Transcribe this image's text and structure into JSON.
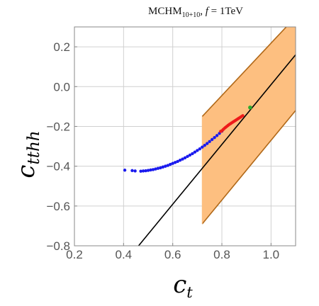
{
  "chart_data": {
    "type": "scatter",
    "title": {
      "pre": "MCHM",
      "sub": "10+10",
      "post": ",  ",
      "f_var": "f",
      "f_rest": " = 1TeV"
    },
    "xlabel": {
      "main": "c",
      "sub": "t"
    },
    "ylabel": {
      "main": "c",
      "sub": "tthh"
    },
    "xlim": [
      0.2,
      1.1
    ],
    "ylim": [
      -0.8,
      0.3
    ],
    "grid": true,
    "xticks": [
      {
        "value": 0.2,
        "label": "0.2"
      },
      {
        "value": 0.4,
        "label": "0.4"
      },
      {
        "value": 0.6,
        "label": "0.6"
      },
      {
        "value": 0.8,
        "label": "0.8"
      },
      {
        "value": 1.0,
        "label": "1.0"
      }
    ],
    "yticks": [
      {
        "value": 0.2,
        "label": "0.2"
      },
      {
        "value": 0.0,
        "label": "0.0"
      },
      {
        "value": -0.2,
        "label": "−0.2"
      },
      {
        "value": -0.4,
        "label": "−0.4"
      },
      {
        "value": -0.6,
        "label": "−0.6"
      },
      {
        "value": -0.8,
        "label": "−0.8"
      }
    ],
    "band": {
      "color": "#fdbf80",
      "edge_color": "#b06818",
      "x_start": 0.72,
      "upper": [
        [
          0.72,
          -0.15
        ],
        [
          1.1,
          0.35
        ]
      ],
      "lower": [
        [
          0.72,
          -0.69
        ],
        [
          1.1,
          -0.12
        ]
      ]
    },
    "line": {
      "color": "#000000",
      "points": [
        [
          0.461,
          -0.8
        ],
        [
          1.1,
          0.16
        ]
      ]
    },
    "series": [
      {
        "color": "#1a1aee",
        "points": [
          [
            0.405,
            -0.42
          ],
          [
            0.435,
            -0.422
          ],
          [
            0.447,
            -0.424
          ],
          [
            0.47,
            -0.425
          ],
          [
            0.48,
            -0.424
          ],
          [
            0.49,
            -0.423
          ],
          [
            0.5,
            -0.421
          ],
          [
            0.51,
            -0.419
          ],
          [
            0.52,
            -0.417
          ],
          [
            0.53,
            -0.414
          ],
          [
            0.54,
            -0.411
          ],
          [
            0.55,
            -0.408
          ],
          [
            0.56,
            -0.404
          ],
          [
            0.57,
            -0.4
          ],
          [
            0.58,
            -0.396
          ],
          [
            0.59,
            -0.391
          ],
          [
            0.6,
            -0.386
          ],
          [
            0.61,
            -0.381
          ],
          [
            0.62,
            -0.376
          ],
          [
            0.63,
            -0.37
          ],
          [
            0.64,
            -0.364
          ],
          [
            0.65,
            -0.358
          ],
          [
            0.66,
            -0.351
          ],
          [
            0.67,
            -0.344
          ],
          [
            0.68,
            -0.337
          ],
          [
            0.69,
            -0.329
          ],
          [
            0.7,
            -0.321
          ],
          [
            0.71,
            -0.313
          ],
          [
            0.72,
            -0.304
          ],
          [
            0.73,
            -0.295
          ],
          [
            0.74,
            -0.286
          ],
          [
            0.75,
            -0.276
          ],
          [
            0.76,
            -0.266
          ],
          [
            0.77,
            -0.256
          ],
          [
            0.78,
            -0.246
          ],
          [
            0.79,
            -0.235
          ],
          [
            0.8,
            -0.224
          ]
        ]
      },
      {
        "color": "#ee1a1a",
        "points": [
          [
            0.795,
            -0.225
          ],
          [
            0.8,
            -0.222
          ],
          [
            0.805,
            -0.216
          ],
          [
            0.81,
            -0.21
          ],
          [
            0.815,
            -0.205
          ],
          [
            0.82,
            -0.2
          ],
          [
            0.825,
            -0.195
          ],
          [
            0.83,
            -0.19
          ],
          [
            0.835,
            -0.186
          ],
          [
            0.84,
            -0.182
          ],
          [
            0.845,
            -0.178
          ],
          [
            0.85,
            -0.174
          ],
          [
            0.855,
            -0.17
          ],
          [
            0.86,
            -0.166
          ],
          [
            0.865,
            -0.162
          ],
          [
            0.87,
            -0.158
          ],
          [
            0.875,
            -0.154
          ],
          [
            0.88,
            -0.15
          ],
          [
            0.885,
            -0.146
          ]
        ]
      },
      {
        "color": "#2eaa2e",
        "points": [
          [
            0.915,
            -0.105
          ]
        ]
      }
    ]
  }
}
